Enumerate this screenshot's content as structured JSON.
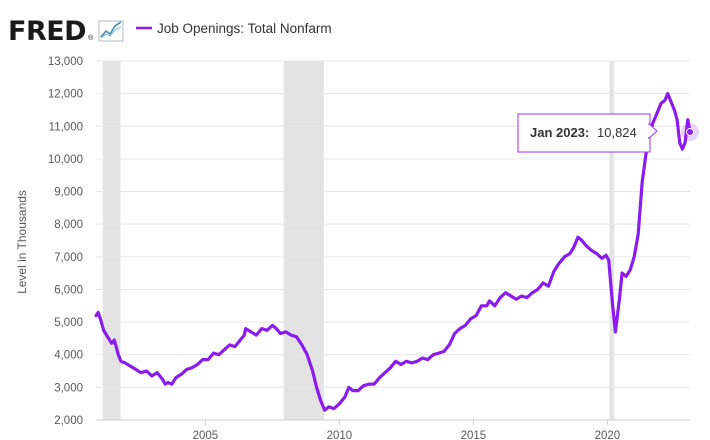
{
  "header": {
    "logo_text": "FRED",
    "logo_mark": "®",
    "legend_label": "Job Openings: Total Nonfarm",
    "icon": "line-chart-icon"
  },
  "tooltip": {
    "date": "Jan 2023:",
    "value": "10,824"
  },
  "colors": {
    "series": "#8b1cf0",
    "recession": "#e3e3e3",
    "grid": "#e6e6e6",
    "tooltip_border": "#9b30f5"
  },
  "chart_data": {
    "type": "line",
    "title": "",
    "xlabel": "",
    "ylabel": "Level in Thousands",
    "ylim": [
      2000,
      13000
    ],
    "xlim": [
      2000.917,
      2023.083
    ],
    "y_ticks": [
      "2,000",
      "3,000",
      "4,000",
      "5,000",
      "6,000",
      "7,000",
      "8,000",
      "9,000",
      "10,000",
      "11,000",
      "12,000",
      "13,000"
    ],
    "x_ticks": [
      "2005",
      "2010",
      "2015",
      "2020"
    ],
    "grid": "horizontal",
    "legend": "top-left",
    "recessions": [
      [
        2001.17,
        2001.83
      ],
      [
        2007.92,
        2009.42
      ],
      [
        2020.08,
        2020.25
      ]
    ],
    "series": [
      {
        "name": "Job Openings: Total Nonfarm",
        "points": [
          [
            2000.92,
            5200
          ],
          [
            2001.0,
            5300
          ],
          [
            2001.1,
            5050
          ],
          [
            2001.2,
            4750
          ],
          [
            2001.35,
            4550
          ],
          [
            2001.5,
            4350
          ],
          [
            2001.6,
            4450
          ],
          [
            2001.75,
            4000
          ],
          [
            2001.85,
            3800
          ],
          [
            2002.0,
            3750
          ],
          [
            2002.2,
            3650
          ],
          [
            2002.4,
            3550
          ],
          [
            2002.6,
            3450
          ],
          [
            2002.8,
            3500
          ],
          [
            2003.0,
            3350
          ],
          [
            2003.2,
            3450
          ],
          [
            2003.4,
            3250
          ],
          [
            2003.5,
            3100
          ],
          [
            2003.6,
            3150
          ],
          [
            2003.75,
            3100
          ],
          [
            2003.9,
            3300
          ],
          [
            2004.1,
            3400
          ],
          [
            2004.3,
            3550
          ],
          [
            2004.5,
            3600
          ],
          [
            2004.7,
            3700
          ],
          [
            2004.9,
            3850
          ],
          [
            2005.1,
            3850
          ],
          [
            2005.3,
            4050
          ],
          [
            2005.5,
            4000
          ],
          [
            2005.7,
            4150
          ],
          [
            2005.9,
            4300
          ],
          [
            2006.1,
            4250
          ],
          [
            2006.3,
            4450
          ],
          [
            2006.45,
            4600
          ],
          [
            2006.5,
            4800
          ],
          [
            2006.7,
            4700
          ],
          [
            2006.9,
            4600
          ],
          [
            2007.1,
            4800
          ],
          [
            2007.3,
            4750
          ],
          [
            2007.5,
            4900
          ],
          [
            2007.65,
            4800
          ],
          [
            2007.8,
            4650
          ],
          [
            2008.0,
            4700
          ],
          [
            2008.2,
            4600
          ],
          [
            2008.4,
            4550
          ],
          [
            2008.6,
            4300
          ],
          [
            2008.8,
            4000
          ],
          [
            2009.0,
            3500
          ],
          [
            2009.15,
            3000
          ],
          [
            2009.3,
            2600
          ],
          [
            2009.45,
            2300
          ],
          [
            2009.6,
            2400
          ],
          [
            2009.8,
            2350
          ],
          [
            2010.0,
            2500
          ],
          [
            2010.2,
            2700
          ],
          [
            2010.35,
            3000
          ],
          [
            2010.5,
            2900
          ],
          [
            2010.7,
            2900
          ],
          [
            2010.9,
            3050
          ],
          [
            2011.1,
            3100
          ],
          [
            2011.3,
            3100
          ],
          [
            2011.5,
            3300
          ],
          [
            2011.7,
            3450
          ],
          [
            2011.9,
            3600
          ],
          [
            2012.1,
            3800
          ],
          [
            2012.3,
            3700
          ],
          [
            2012.5,
            3800
          ],
          [
            2012.7,
            3750
          ],
          [
            2012.9,
            3800
          ],
          [
            2013.1,
            3900
          ],
          [
            2013.3,
            3850
          ],
          [
            2013.5,
            4000
          ],
          [
            2013.7,
            4050
          ],
          [
            2013.9,
            4100
          ],
          [
            2014.1,
            4300
          ],
          [
            2014.3,
            4650
          ],
          [
            2014.5,
            4800
          ],
          [
            2014.7,
            4900
          ],
          [
            2014.9,
            5100
          ],
          [
            2015.1,
            5200
          ],
          [
            2015.3,
            5500
          ],
          [
            2015.5,
            5500
          ],
          [
            2015.6,
            5650
          ],
          [
            2015.8,
            5500
          ],
          [
            2016.0,
            5750
          ],
          [
            2016.2,
            5900
          ],
          [
            2016.4,
            5800
          ],
          [
            2016.6,
            5700
          ],
          [
            2016.8,
            5800
          ],
          [
            2017.0,
            5750
          ],
          [
            2017.2,
            5900
          ],
          [
            2017.4,
            6000
          ],
          [
            2017.6,
            6200
          ],
          [
            2017.8,
            6100
          ],
          [
            2018.0,
            6550
          ],
          [
            2018.2,
            6800
          ],
          [
            2018.4,
            7000
          ],
          [
            2018.6,
            7100
          ],
          [
            2018.75,
            7300
          ],
          [
            2018.9,
            7600
          ],
          [
            2019.05,
            7500
          ],
          [
            2019.2,
            7350
          ],
          [
            2019.4,
            7200
          ],
          [
            2019.6,
            7100
          ],
          [
            2019.8,
            6950
          ],
          [
            2019.95,
            7050
          ],
          [
            2020.05,
            6900
          ],
          [
            2020.2,
            5500
          ],
          [
            2020.3,
            4700
          ],
          [
            2020.45,
            5700
          ],
          [
            2020.55,
            6500
          ],
          [
            2020.7,
            6400
          ],
          [
            2020.85,
            6600
          ],
          [
            2021.0,
            7000
          ],
          [
            2021.15,
            7700
          ],
          [
            2021.3,
            9300
          ],
          [
            2021.45,
            10200
          ],
          [
            2021.55,
            10700
          ],
          [
            2021.7,
            11100
          ],
          [
            2021.85,
            11400
          ],
          [
            2022.0,
            11700
          ],
          [
            2022.15,
            11800
          ],
          [
            2022.25,
            12000
          ],
          [
            2022.4,
            11700
          ],
          [
            2022.5,
            11500
          ],
          [
            2022.6,
            11200
          ],
          [
            2022.7,
            10500
          ],
          [
            2022.8,
            10300
          ],
          [
            2022.9,
            10500
          ],
          [
            2023.0,
            11200
          ],
          [
            2023.083,
            10824
          ]
        ]
      }
    ]
  }
}
